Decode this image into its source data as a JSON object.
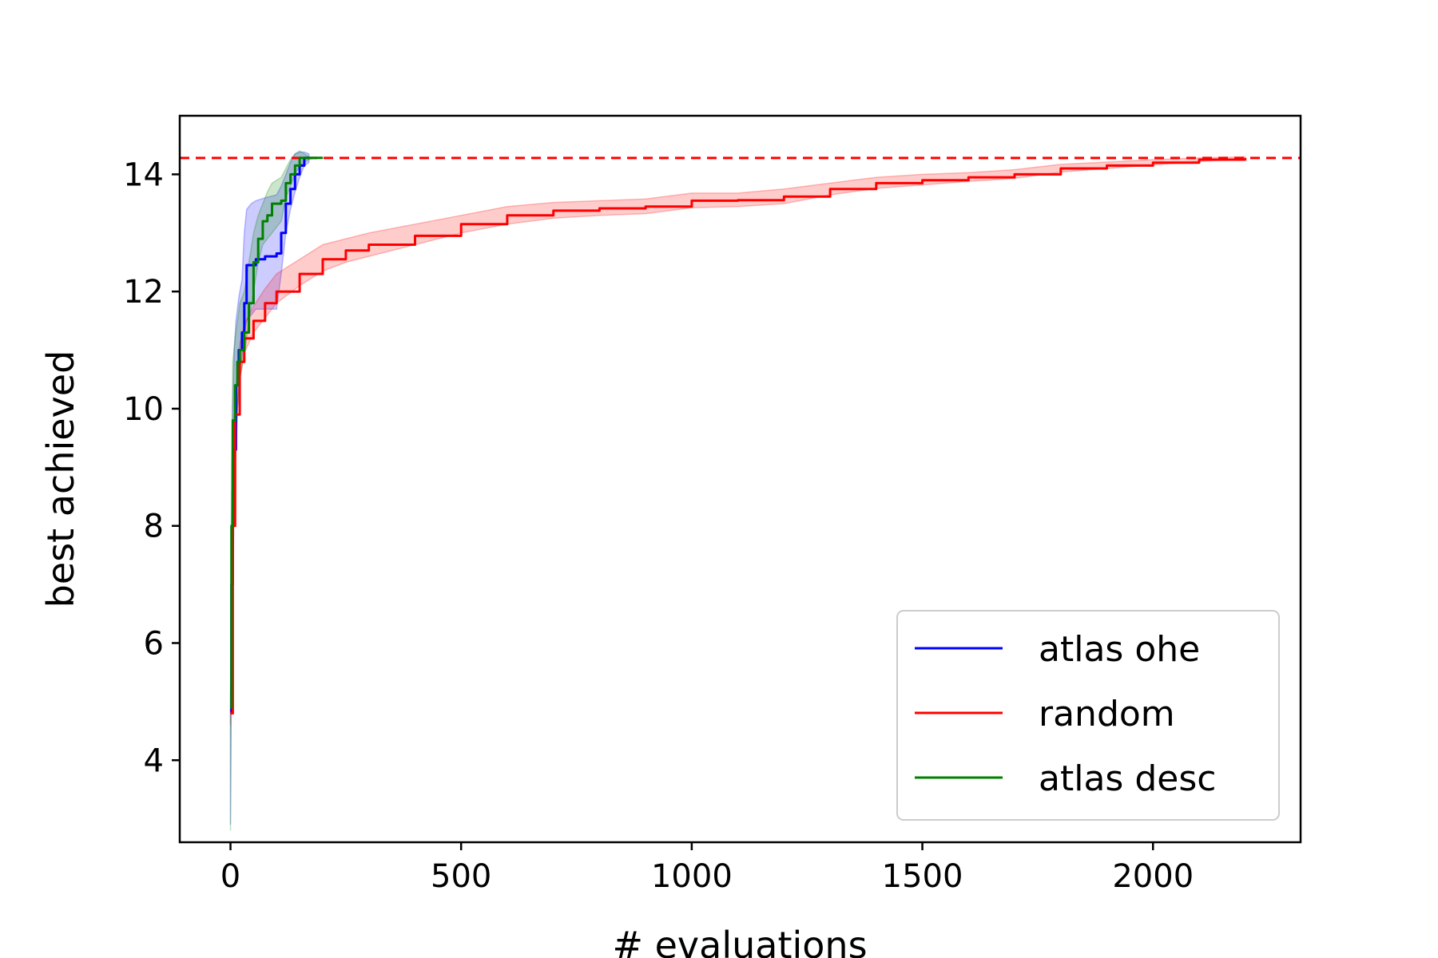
{
  "chart_data": {
    "type": "line",
    "title": "",
    "xlabel": "# evaluations",
    "ylabel": "best achieved",
    "xlim": [
      -110,
      2320
    ],
    "ylim": [
      2.6,
      15.0
    ],
    "xticks": [
      0,
      500,
      1000,
      1500,
      2000
    ],
    "yticks": [
      4,
      6,
      8,
      10,
      12,
      14
    ],
    "grid": false,
    "legend": {
      "position": "lower-right"
    },
    "reference_line": {
      "y": 14.28,
      "color": "#ff0000",
      "style": "dashed"
    },
    "series": [
      {
        "name": "atlas ohe",
        "color": "#0000ff",
        "x": [
          0,
          2,
          5,
          8,
          12,
          18,
          25,
          30,
          35,
          45,
          55,
          75,
          100,
          110,
          120,
          130,
          140,
          150,
          160,
          170
        ],
        "y": [
          4.8,
          7.0,
          8.6,
          9.3,
          10.4,
          11.0,
          11.3,
          11.8,
          12.45,
          12.45,
          12.55,
          12.6,
          12.65,
          13.0,
          13.5,
          13.75,
          14.0,
          14.15,
          14.28,
          14.28
        ],
        "lower": [
          2.9,
          5.5,
          6.8,
          8.5,
          9.3,
          10.5,
          10.9,
          11.3,
          11.5,
          11.6,
          11.7,
          11.7,
          11.7,
          12.3,
          13.0,
          13.4,
          13.7,
          13.95,
          14.15,
          14.2
        ],
        "upper": [
          4.7,
          8.0,
          10.0,
          11.0,
          11.5,
          11.9,
          12.2,
          13.0,
          13.4,
          13.5,
          13.55,
          13.6,
          13.65,
          13.8,
          14.0,
          14.2,
          14.35,
          14.38,
          14.38,
          14.35
        ]
      },
      {
        "name": "random",
        "color": "#ff0000",
        "x": [
          0,
          5,
          10,
          20,
          30,
          50,
          75,
          100,
          150,
          200,
          250,
          300,
          400,
          500,
          600,
          700,
          800,
          900,
          1000,
          1100,
          1200,
          1300,
          1400,
          1500,
          1600,
          1700,
          1800,
          1900,
          2000,
          2100,
          2200
        ],
        "y": [
          4.8,
          8.0,
          9.9,
          10.8,
          11.2,
          11.5,
          11.8,
          12.0,
          12.3,
          12.55,
          12.7,
          12.8,
          12.95,
          13.15,
          13.3,
          13.38,
          13.42,
          13.45,
          13.55,
          13.56,
          13.62,
          13.75,
          13.85,
          13.9,
          13.95,
          14.0,
          14.1,
          14.15,
          14.2,
          14.25,
          14.28
        ],
        "lower": [
          4.6,
          7.7,
          9.6,
          10.5,
          10.95,
          11.3,
          11.55,
          11.8,
          12.1,
          12.35,
          12.5,
          12.6,
          12.8,
          13.0,
          13.15,
          13.25,
          13.3,
          13.33,
          13.43,
          13.45,
          13.5,
          13.65,
          13.76,
          13.82,
          13.88,
          13.93,
          14.04,
          14.1,
          14.16,
          14.22,
          14.26
        ],
        "upper": [
          5.0,
          8.3,
          10.2,
          11.1,
          11.45,
          11.75,
          12.05,
          12.3,
          12.55,
          12.8,
          12.9,
          13.0,
          13.15,
          13.3,
          13.45,
          13.52,
          13.55,
          13.58,
          13.68,
          13.68,
          13.75,
          13.85,
          13.95,
          14.0,
          14.03,
          14.08,
          14.17,
          14.21,
          14.25,
          14.28,
          14.3
        ]
      },
      {
        "name": "atlas desc",
        "color": "#008000",
        "x": [
          0,
          2,
          5,
          10,
          15,
          20,
          30,
          40,
          50,
          60,
          70,
          80,
          90,
          100,
          110,
          120,
          130,
          140,
          150,
          160,
          170,
          180,
          200
        ],
        "y": [
          4.9,
          8.0,
          9.8,
          10.4,
          10.8,
          11.0,
          11.3,
          11.8,
          12.5,
          12.9,
          13.2,
          13.3,
          13.5,
          13.5,
          13.55,
          13.85,
          14.0,
          14.15,
          14.28,
          14.28,
          14.28,
          14.28,
          14.28
        ],
        "lower": [
          2.8,
          6.5,
          8.6,
          9.5,
          10.0,
          10.5,
          10.9,
          11.5,
          12.0,
          12.5,
          12.8,
          12.9,
          13.0,
          13.1,
          13.2,
          13.6,
          13.8,
          14.0,
          14.15,
          14.2,
          14.25,
          14.28,
          14.28
        ],
        "upper": [
          5.0,
          9.0,
          10.8,
          11.2,
          11.5,
          11.8,
          12.0,
          12.5,
          13.0,
          13.3,
          13.5,
          13.7,
          13.85,
          13.9,
          13.95,
          14.1,
          14.25,
          14.35,
          14.4,
          14.35,
          14.3,
          14.28,
          14.28
        ]
      }
    ]
  }
}
